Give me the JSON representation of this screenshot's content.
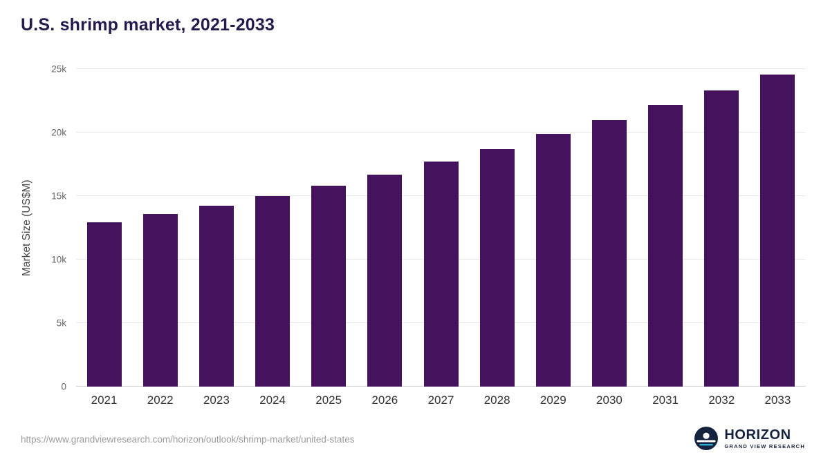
{
  "page": {
    "title": "U.S. shrimp market, 2021-2033",
    "source_url": "https://www.grandviewresearch.com/horizon/outlook/shrimp-market/united-states",
    "logo": {
      "name": "HORIZON",
      "subtitle": "GRAND VIEW RESEARCH"
    }
  },
  "colors": {
    "bar": "#45125d",
    "title": "#251a4d",
    "gridline": "#e7e7e7",
    "axis_label": "#666666",
    "logo_navy": "#16233f",
    "logo_teal": "#2bb3d4"
  },
  "chart_data": {
    "type": "bar",
    "title": "U.S. shrimp market, 2021-2033",
    "categories": [
      "2021",
      "2022",
      "2023",
      "2024",
      "2025",
      "2026",
      "2027",
      "2028",
      "2029",
      "2030",
      "2031",
      "2032",
      "2033"
    ],
    "values": [
      12950,
      13600,
      14250,
      15000,
      15800,
      16700,
      17700,
      18700,
      19900,
      21000,
      22200,
      23300,
      24550
    ],
    "xlabel": "",
    "ylabel": "Market Size (US$M)",
    "ylim": [
      0,
      25000
    ],
    "yticks": [
      {
        "value": 0,
        "label": "0"
      },
      {
        "value": 5000,
        "label": "5k"
      },
      {
        "value": 10000,
        "label": "10k"
      },
      {
        "value": 15000,
        "label": "15k"
      },
      {
        "value": 20000,
        "label": "20k"
      },
      {
        "value": 25000,
        "label": "25k"
      }
    ],
    "grid": "horizontal",
    "legend": "none",
    "bar_color": "#45125d"
  }
}
